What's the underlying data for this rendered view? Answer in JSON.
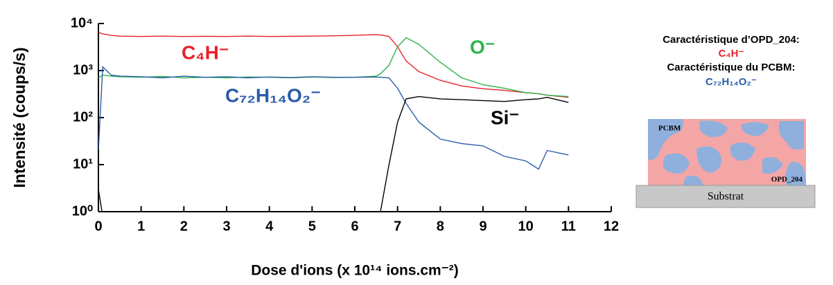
{
  "chart_data": {
    "type": "line",
    "y_label": "Intensité (coups/s)",
    "x_label": "Dose d'ions (x 10¹⁴ ions.cm⁻²)",
    "log_y": true,
    "xlim": [
      0,
      12
    ],
    "xticks": [
      0,
      1,
      2,
      3,
      4,
      5,
      6,
      7,
      8,
      9,
      10,
      11,
      12
    ],
    "ylim": [
      1,
      10000
    ],
    "yticks": [
      {
        "value": 1,
        "label": "10⁰"
      },
      {
        "value": 10,
        "label": "10¹"
      },
      {
        "value": 100,
        "label": "10²"
      },
      {
        "value": 1000,
        "label": "10³"
      },
      {
        "value": 10000,
        "label": "10⁴"
      }
    ],
    "x": [
      0,
      0.1,
      0.3,
      0.5,
      1,
      1.5,
      2,
      2.5,
      3,
      3.5,
      4,
      4.5,
      5,
      5.5,
      6,
      6.5,
      6.6,
      6.8,
      7,
      7.2,
      7.5,
      8,
      8.5,
      9,
      9.5,
      10,
      10.3,
      10.5,
      11
    ],
    "series": [
      {
        "name": "C₄H⁻",
        "color": "#e8202a",
        "values": [
          6500,
          6000,
          5600,
          5400,
          5300,
          5400,
          5300,
          5350,
          5300,
          5400,
          5300,
          5350,
          5400,
          5500,
          5600,
          5800,
          5700,
          5300,
          3200,
          1600,
          950,
          620,
          470,
          410,
          380,
          340,
          320,
          300,
          270
        ]
      },
      {
        "name": "O⁻",
        "color": "#2db34a",
        "values": [
          700,
          800,
          760,
          740,
          720,
          750,
          700,
          720,
          700,
          730,
          720,
          700,
          730,
          710,
          720,
          760,
          850,
          1300,
          3200,
          5000,
          3600,
          1500,
          700,
          500,
          420,
          340,
          320,
          300,
          280
        ]
      },
      {
        "name": "C₇₂H₁₄O₂⁻",
        "color": "#2a5caa",
        "values": [
          20,
          1200,
          800,
          760,
          740,
          700,
          760,
          720,
          740,
          700,
          730,
          710,
          740,
          720,
          720,
          730,
          720,
          700,
          420,
          200,
          80,
          35,
          28,
          25,
          15,
          12,
          8,
          20,
          16
        ]
      },
      {
        "name": "Si⁻",
        "color": "#000000",
        "values": [
          3,
          0.8,
          null,
          null,
          null,
          null,
          null,
          null,
          null,
          null,
          null,
          null,
          null,
          null,
          null,
          null,
          1,
          10,
          80,
          250,
          280,
          250,
          240,
          230,
          220,
          240,
          250,
          270,
          210
        ]
      }
    ]
  },
  "side_panel": {
    "line1": "Caractéristique d’OPD_204:",
    "line2": "C₄H⁻",
    "line3": "Caractéristique du PCBM:",
    "line4": "C₇₂H₁₄O₂⁻"
  },
  "schematic": {
    "top_label": "PCBM",
    "bottom_label": "OPD_204",
    "substrate": "Substrat"
  }
}
